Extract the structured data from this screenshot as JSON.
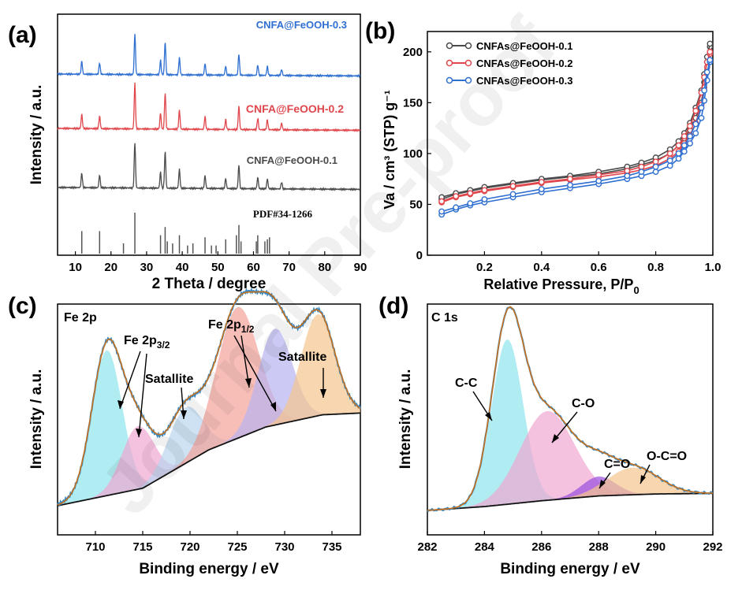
{
  "watermark": "Journal Pre-proof",
  "panels": {
    "a": {
      "letter": "(a)",
      "ylabel": "Intensity / a.u.",
      "xlabel": "2 Theta / degree",
      "reference_label": "PDF#34-1266",
      "series_labels": [
        "CNFA@FeOOH-0.1",
        "CNFA@FeOOH-0.2",
        "CNFA@FeOOH-0.3"
      ],
      "xticks": [
        "10",
        "20",
        "30",
        "40",
        "50",
        "60",
        "70",
        "80",
        "90"
      ]
    },
    "b": {
      "letter": "(b)",
      "ylabel": "Va / cm³ (STP) g⁻¹",
      "xlabel": "Relative Pressure, P/P",
      "xlabel_sub": "0",
      "legend": [
        "CNFAs@FeOOH-0.1",
        "CNFAs@FeOOH-0.2",
        "CNFAs@FeOOH-0.3"
      ],
      "xticks": [
        "0.2",
        "0.4",
        "0.6",
        "0.8",
        "1.0"
      ],
      "yticks": [
        "0",
        "50",
        "100",
        "150",
        "200"
      ]
    },
    "c": {
      "letter": "(c)",
      "title": "Fe 2p",
      "ylabel": "Intensity / a.u.",
      "xlabel": "Binding energy / eV",
      "ann_fe32": "Fe 2p",
      "ann_fe32_sub": "3/2",
      "ann_fe12": "Fe 2p",
      "ann_fe12_sub": "1/2",
      "ann_sat1": "Satallite",
      "ann_sat2": "Satallite",
      "xticks": [
        "710",
        "715",
        "720",
        "725",
        "730",
        "735"
      ]
    },
    "d": {
      "letter": "(d)",
      "title": "C 1s",
      "ylabel": "Intensity / a.u.",
      "xlabel": "Binding energy / eV",
      "ann_cc": "C-C",
      "ann_co": "C-O",
      "ann_c_o_double": "C=O",
      "ann_oco": "O-C=O",
      "xticks": [
        "282",
        "284",
        "286",
        "288",
        "290",
        "292"
      ]
    }
  },
  "colors": {
    "s01": "#4a4a4a",
    "s02": "#e0474c",
    "s03": "#2e6fd1",
    "envelope": "#c5711e",
    "data_line": "#3c8ac4",
    "background_line": "#111111",
    "pk_cyan": "#8ee5ec",
    "pk_pink": "#f0a6d2",
    "pk_blue": "#b9d6ee",
    "pk_salmon": "#f3a39a",
    "pk_lav": "#b6b2ef",
    "pk_orange": "#f5c68e",
    "pk_purple": "#9a4dde"
  },
  "chart_data": [
    {
      "panel": "a",
      "type": "line",
      "title": "",
      "xlabel": "2 Theta / degree",
      "ylabel": "Intensity / a.u.",
      "xlim": [
        5,
        90
      ],
      "yticks_shown": false,
      "peaks_2theta": [
        11.8,
        16.8,
        26.7,
        33.9,
        35.2,
        39.2,
        46.4,
        52.2,
        55.9,
        61.2,
        63.9,
        67.9
      ],
      "peak_relative_heights": [
        0.32,
        0.28,
        1.0,
        0.35,
        0.8,
        0.42,
        0.28,
        0.22,
        0.52,
        0.25,
        0.22,
        0.15
      ],
      "series": [
        {
          "name": "CNFA@FeOOH-0.1",
          "offset": 0
        },
        {
          "name": "CNFA@FeOOH-0.2",
          "offset": 1
        },
        {
          "name": "CNFA@FeOOH-0.3",
          "offset": 2
        }
      ],
      "reference": {
        "name": "PDF#34-1266",
        "positions": [
          11.8,
          16.8,
          23.5,
          26.7,
          33.9,
          35.2,
          35.8,
          37.3,
          39.2,
          41.5,
          43.0,
          46.4,
          48.2,
          49.5,
          52.2,
          55.2,
          55.9,
          56.5,
          60.8,
          61.2,
          63.2,
          63.9,
          64.5
        ],
        "heights": [
          0.55,
          0.55,
          0.25,
          1.0,
          0.45,
          0.65,
          0.3,
          0.25,
          0.45,
          0.2,
          0.25,
          0.4,
          0.2,
          0.2,
          0.35,
          0.45,
          0.7,
          0.3,
          0.3,
          0.45,
          0.3,
          0.35,
          0.4
        ]
      }
    },
    {
      "panel": "b",
      "type": "line",
      "title": "",
      "xlabel": "Relative Pressure, P/P0",
      "ylabel": "Va / cm3 (STP) g-1",
      "xlim": [
        0,
        1.0
      ],
      "ylim": [
        0,
        220
      ],
      "series": [
        {
          "name": "CNFAs@FeOOH-0.1",
          "x": [
            0.05,
            0.1,
            0.15,
            0.2,
            0.3,
            0.4,
            0.5,
            0.6,
            0.7,
            0.75,
            0.8,
            0.85,
            0.88,
            0.9,
            0.92,
            0.94,
            0.96,
            0.97,
            0.98,
            0.99
          ],
          "adsorption": [
            55,
            60,
            63,
            66,
            70,
            74,
            77,
            80,
            85,
            89,
            93,
            100,
            108,
            115,
            123,
            135,
            150,
            170,
            190,
            205
          ],
          "desorption": [
            57,
            61,
            64,
            67,
            71,
            75,
            78,
            82,
            87,
            91,
            96,
            104,
            112,
            120,
            130,
            145,
            162,
            178,
            195,
            208
          ]
        },
        {
          "name": "CNFAs@FeOOH-0.2",
          "x": [
            0.05,
            0.1,
            0.15,
            0.2,
            0.3,
            0.4,
            0.5,
            0.6,
            0.7,
            0.75,
            0.8,
            0.85,
            0.88,
            0.9,
            0.92,
            0.94,
            0.96,
            0.97,
            0.98,
            0.99
          ],
          "adsorption": [
            52,
            57,
            60,
            63,
            67,
            71,
            74,
            77,
            81,
            84,
            88,
            95,
            102,
            110,
            118,
            130,
            148,
            165,
            185,
            198
          ],
          "desorption": [
            53,
            58,
            61,
            64,
            68,
            72,
            75,
            79,
            83,
            87,
            92,
            100,
            108,
            117,
            127,
            142,
            160,
            175,
            190,
            200
          ]
        },
        {
          "name": "CNFAs@FeOOH-0.3",
          "x": [
            0.05,
            0.1,
            0.15,
            0.2,
            0.3,
            0.4,
            0.5,
            0.6,
            0.7,
            0.75,
            0.8,
            0.85,
            0.88,
            0.9,
            0.92,
            0.94,
            0.96,
            0.97,
            0.98,
            0.99
          ],
          "adsorption": [
            40,
            45,
            49,
            52,
            57,
            62,
            66,
            70,
            75,
            78,
            82,
            88,
            95,
            102,
            110,
            120,
            135,
            152,
            172,
            190
          ],
          "desorption": [
            43,
            47,
            51,
            55,
            60,
            65,
            69,
            73,
            78,
            82,
            87,
            93,
            100,
            108,
            117,
            129,
            145,
            162,
            180,
            192
          ]
        }
      ]
    },
    {
      "panel": "c",
      "type": "line",
      "title": "Fe 2p",
      "xlabel": "Binding energy / eV",
      "ylabel": "Intensity / a.u.",
      "xlim": [
        706,
        738
      ],
      "ylim": [
        0,
        1.0
      ],
      "background": [
        [
          706,
          0.0
        ],
        [
          715,
          0.1
        ],
        [
          722,
          0.32
        ],
        [
          728,
          0.45
        ],
        [
          734,
          0.52
        ],
        [
          738,
          0.53
        ]
      ],
      "components": [
        {
          "name": "Fe 2p3/2 main",
          "center": 711.2,
          "height": 0.83,
          "sigma": 1.6,
          "color": "pk_cyan"
        },
        {
          "name": "Fe 2p3/2",
          "center": 714.5,
          "height": 0.36,
          "sigma": 1.7,
          "color": "pk_pink"
        },
        {
          "name": "Satallite",
          "center": 719.5,
          "height": 0.32,
          "sigma": 1.8,
          "color": "pk_blue"
        },
        {
          "name": "Fe 2p1/2 main",
          "center": 725.0,
          "height": 0.75,
          "sigma": 2.2,
          "color": "pk_salmon"
        },
        {
          "name": "Fe 2p1/2",
          "center": 729.0,
          "height": 0.55,
          "sigma": 1.8,
          "color": "pk_lav"
        },
        {
          "name": "Satallite",
          "center": 733.5,
          "height": 0.58,
          "sigma": 1.8,
          "color": "pk_orange"
        }
      ]
    },
    {
      "panel": "d",
      "type": "line",
      "title": "C 1s",
      "xlabel": "Binding energy / eV",
      "ylabel": "Intensity / a.u.",
      "xlim": [
        282,
        292
      ],
      "ylim": [
        0,
        1.0
      ],
      "background": [
        [
          282,
          0.0
        ],
        [
          284,
          0.02
        ],
        [
          286,
          0.05
        ],
        [
          288,
          0.075
        ],
        [
          290,
          0.085
        ],
        [
          292,
          0.088
        ]
      ],
      "components": [
        {
          "name": "C-C",
          "center": 284.8,
          "height": 0.85,
          "sigma": 0.55,
          "color": "pk_cyan"
        },
        {
          "name": "C-O",
          "center": 286.2,
          "height": 0.46,
          "sigma": 0.95,
          "color": "pk_pink"
        },
        {
          "name": "C=O",
          "center": 288.0,
          "height": 0.1,
          "sigma": 0.6,
          "color": "pk_purple"
        },
        {
          "name": "O-C=O",
          "center": 289.2,
          "height": 0.14,
          "sigma": 0.9,
          "color": "pk_orange"
        }
      ]
    }
  ]
}
